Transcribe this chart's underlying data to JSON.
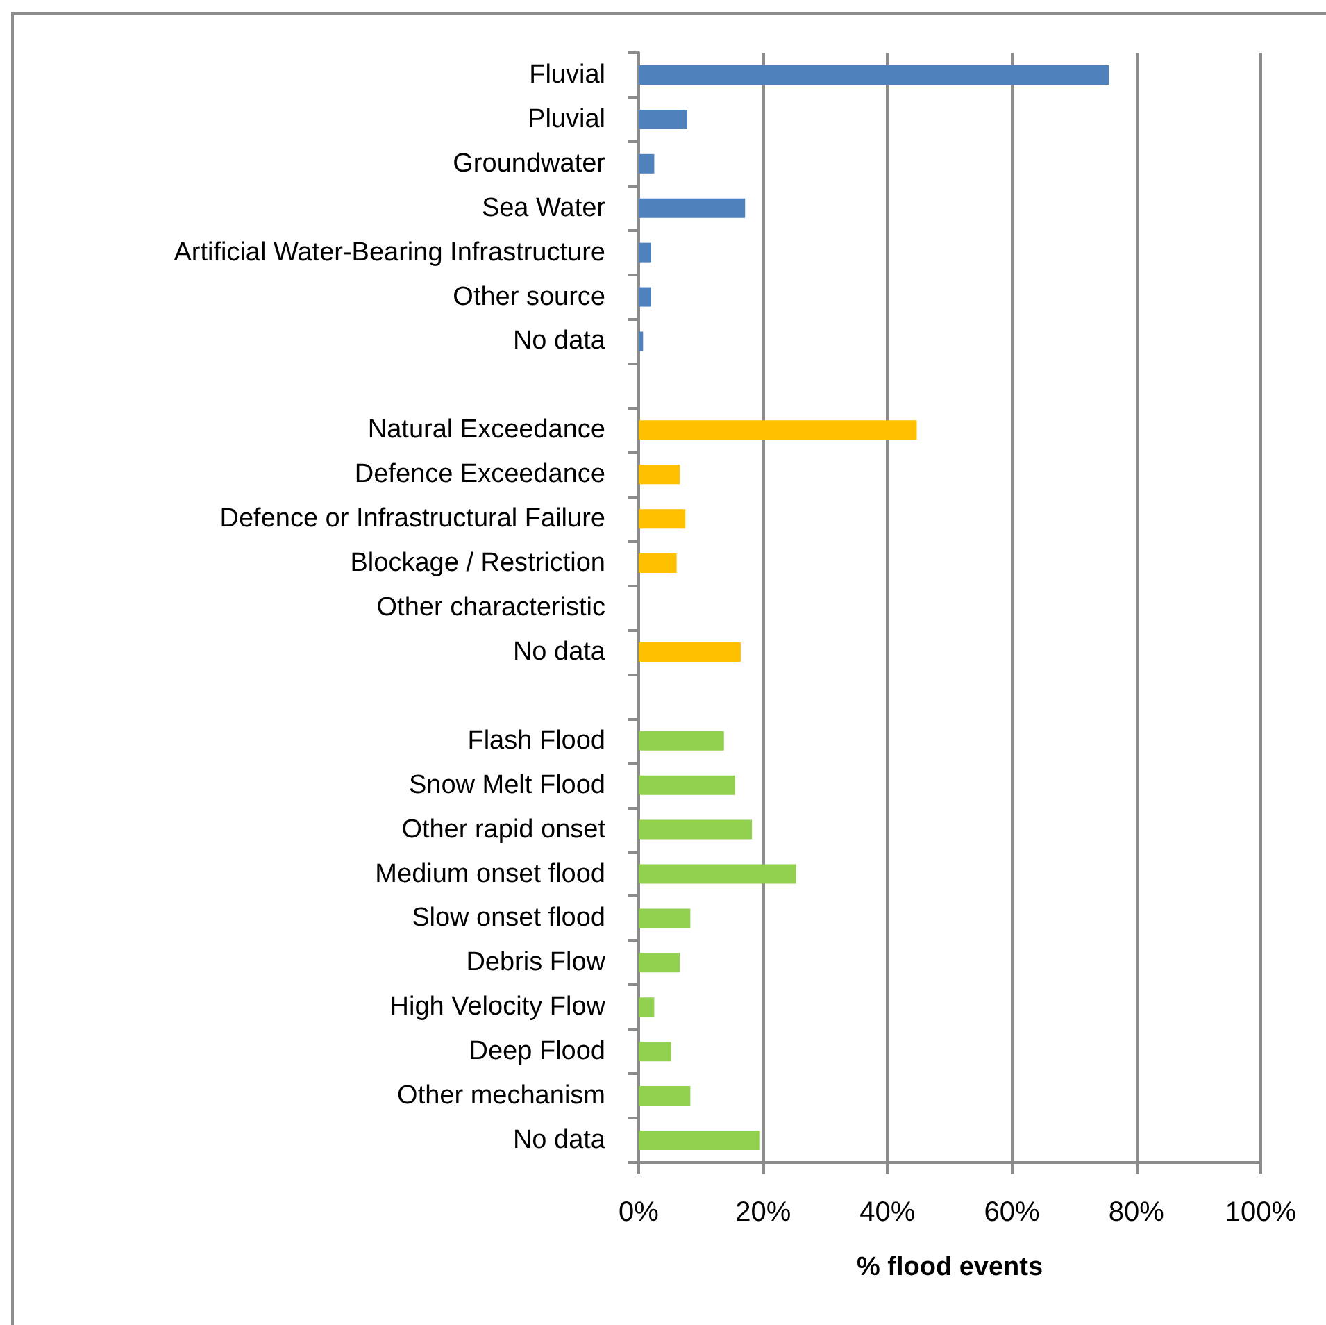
{
  "chart_data": {
    "type": "bar",
    "orientation": "horizontal",
    "categories": [
      "Fluvial",
      "Pluvial",
      "Groundwater",
      "Sea Water",
      "Artificial Water-Bearing Infrastructure",
      "Other source",
      "No data",
      null,
      "Natural Exceedance",
      "Defence Exceedance",
      "Defence or Infrastructural Failure",
      "Blockage / Restriction",
      "Other characteristic",
      "No data",
      null,
      "Flash Flood",
      "Snow Melt Flood",
      "Other rapid onset",
      "Medium onset flood",
      "Slow onset flood",
      "Debris Flow",
      "High Velocity Flow",
      "Deep Flood",
      "Other mechanism",
      "No data"
    ],
    "values": [
      75.6,
      7.8,
      2.5,
      17.1,
      2.0,
      2.0,
      0.7,
      null,
      44.7,
      6.6,
      7.5,
      6.1,
      0,
      16.4,
      null,
      13.7,
      15.5,
      18.2,
      25.3,
      8.3,
      6.6,
      2.5,
      5.2,
      8.3,
      19.5
    ],
    "colors": [
      "#4f81bd",
      "#4f81bd",
      "#4f81bd",
      "#4f81bd",
      "#4f81bd",
      "#4f81bd",
      "#4f81bd",
      null,
      "#ffc000",
      "#ffc000",
      "#ffc000",
      "#ffc000",
      "#ffc000",
      "#ffc000",
      null,
      "#92d050",
      "#92d050",
      "#92d050",
      "#92d050",
      "#92d050",
      "#92d050",
      "#92d050",
      "#92d050",
      "#92d050",
      "#92d050"
    ],
    "xlabel": "% flood events",
    "xlim": [
      0,
      100
    ],
    "xticks": [
      {
        "value": 0,
        "label": "0%"
      },
      {
        "value": 20,
        "label": "20%"
      },
      {
        "value": 40,
        "label": "40%"
      },
      {
        "value": 60,
        "label": "60%"
      },
      {
        "value": 80,
        "label": "80%"
      },
      {
        "value": 100,
        "label": "100%"
      }
    ],
    "grid": "x"
  }
}
